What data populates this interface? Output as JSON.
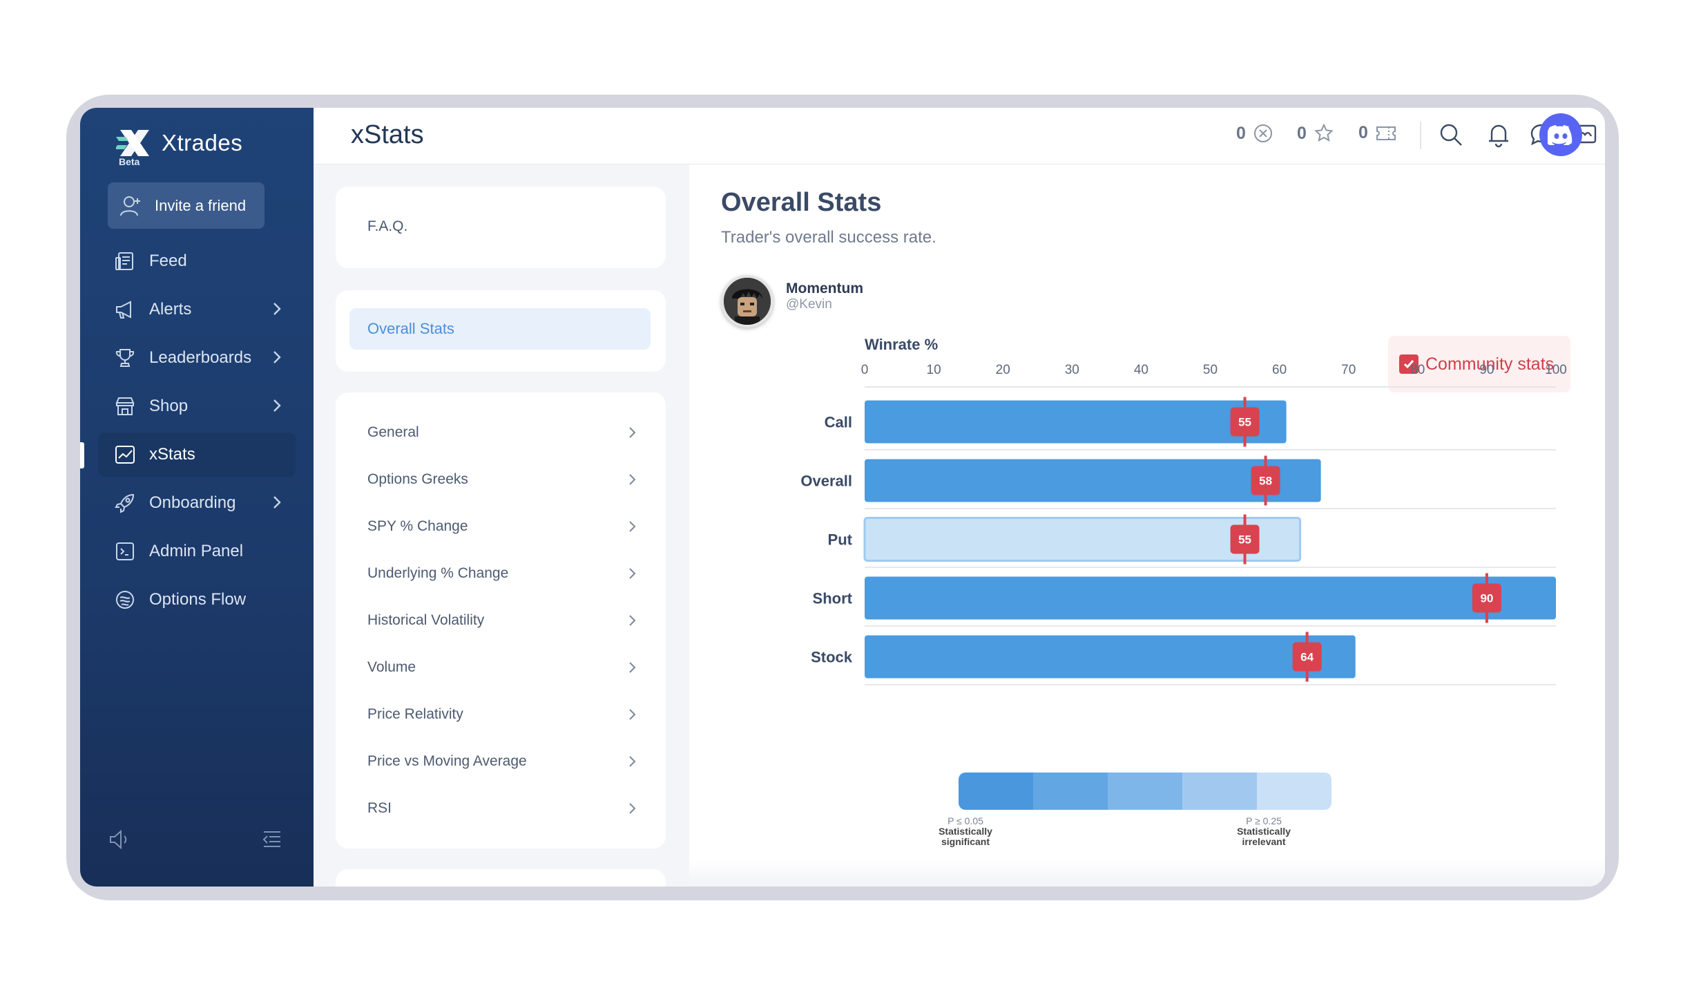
{
  "app": {
    "name": "Xtrades",
    "badge": "Beta",
    "page_title": "xStats"
  },
  "sidebar": {
    "invite_label": "Invite a friend",
    "items": [
      {
        "label": "Feed",
        "icon": "feed-icon",
        "chevron": false
      },
      {
        "label": "Alerts",
        "icon": "megaphone-icon",
        "chevron": true
      },
      {
        "label": "Leaderboards",
        "icon": "trophy-icon",
        "chevron": true
      },
      {
        "label": "Shop",
        "icon": "store-icon",
        "chevron": true
      },
      {
        "label": "xStats",
        "icon": "chart-icon",
        "chevron": false,
        "active": true
      },
      {
        "label": "Onboarding",
        "icon": "rocket-icon",
        "chevron": true
      },
      {
        "label": "Admin Panel",
        "icon": "terminal-icon",
        "chevron": false
      },
      {
        "label": "Options Flow",
        "icon": "flow-icon",
        "chevron": false
      }
    ]
  },
  "topbar": {
    "counters": [
      {
        "value": "0",
        "icon": "x-coin-icon"
      },
      {
        "value": "0",
        "icon": "star-icon"
      },
      {
        "value": "0",
        "icon": "ticket-icon"
      }
    ],
    "icons": [
      "search-icon",
      "bell-icon",
      "chat-icon",
      "message-box-icon",
      "discord-icon"
    ]
  },
  "stats_menu": {
    "faq": "F.A.Q.",
    "overall": "Overall Stats",
    "items": [
      "General",
      "Options Greeks",
      "SPY % Change",
      "Underlying % Change",
      "Historical Volatility",
      "Volume",
      "Price Relativity",
      "Price vs Moving Average",
      "RSI"
    ]
  },
  "main": {
    "title": "Overall Stats",
    "subtitle": "Trader's overall success rate.",
    "user": {
      "name": "Momentum",
      "handle": "@Kevin"
    },
    "community_label": "Community stats",
    "scale": {
      "left_p": "P ≤ 0.05",
      "left_l1": "Statistically",
      "left_l2": "significant",
      "right_p": "P ≥ 0.25",
      "right_l1": "Statistically",
      "right_l2": "irrelevant",
      "colors": [
        "#4a97de",
        "#63a6e4",
        "#7fb6ea",
        "#a1c9f0",
        "#c9e0f6"
      ]
    }
  },
  "chart_data": {
    "type": "bar",
    "orientation": "horizontal",
    "title": "Winrate %",
    "xlim": [
      0,
      100
    ],
    "x_ticks": [
      0,
      10,
      20,
      30,
      40,
      50,
      60,
      70,
      80,
      90,
      100
    ],
    "categories": [
      "Call",
      "Overall",
      "Put",
      "Short",
      "Stock"
    ],
    "values": [
      61,
      66,
      63,
      100,
      71
    ],
    "community_markers": [
      55,
      58,
      55,
      90,
      64
    ],
    "bar_colors": [
      "#4a9be0",
      "#4a9be0",
      "#c9e2f6",
      "#4a9be0",
      "#4a9be0"
    ],
    "marker_color": "#d9434f",
    "grid": true
  }
}
